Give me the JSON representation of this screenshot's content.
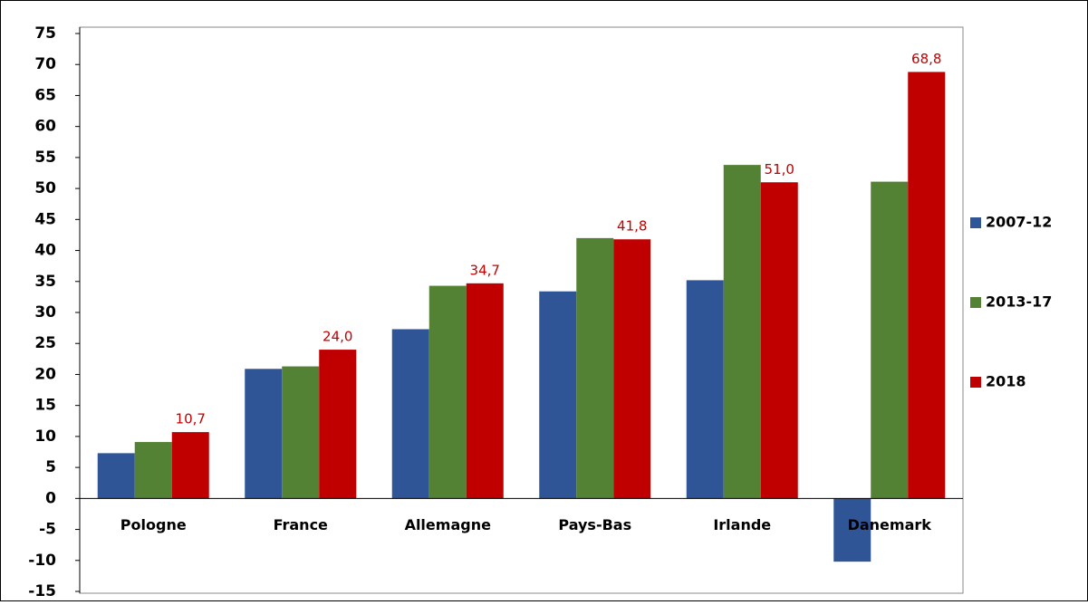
{
  "chart_data": {
    "type": "bar",
    "categories": [
      "Pologne",
      "France",
      "Allemagne",
      "Pays-Bas",
      "Irlande",
      "Danemark"
    ],
    "series": [
      {
        "name": "2007-12",
        "color": "#2f5597",
        "values": [
          7.3,
          20.9,
          27.3,
          33.4,
          35.2,
          -10.2
        ]
      },
      {
        "name": "2013-17",
        "color": "#548235",
        "values": [
          9.1,
          21.3,
          34.3,
          42.0,
          53.8,
          51.1
        ]
      },
      {
        "name": "2018",
        "color": "#c00000",
        "values": [
          10.7,
          24.0,
          34.7,
          41.8,
          51.0,
          68.8
        ],
        "value_labels": [
          "10,7",
          "24,0",
          "34,7",
          "41,8",
          "51,0",
          "68,8"
        ]
      }
    ],
    "ylim": [
      -15,
      75
    ],
    "yticks": [
      -15,
      -10,
      -5,
      0,
      5,
      10,
      15,
      20,
      25,
      30,
      35,
      40,
      45,
      50,
      55,
      60,
      65,
      70,
      75
    ],
    "grid": false,
    "legend": "right"
  }
}
